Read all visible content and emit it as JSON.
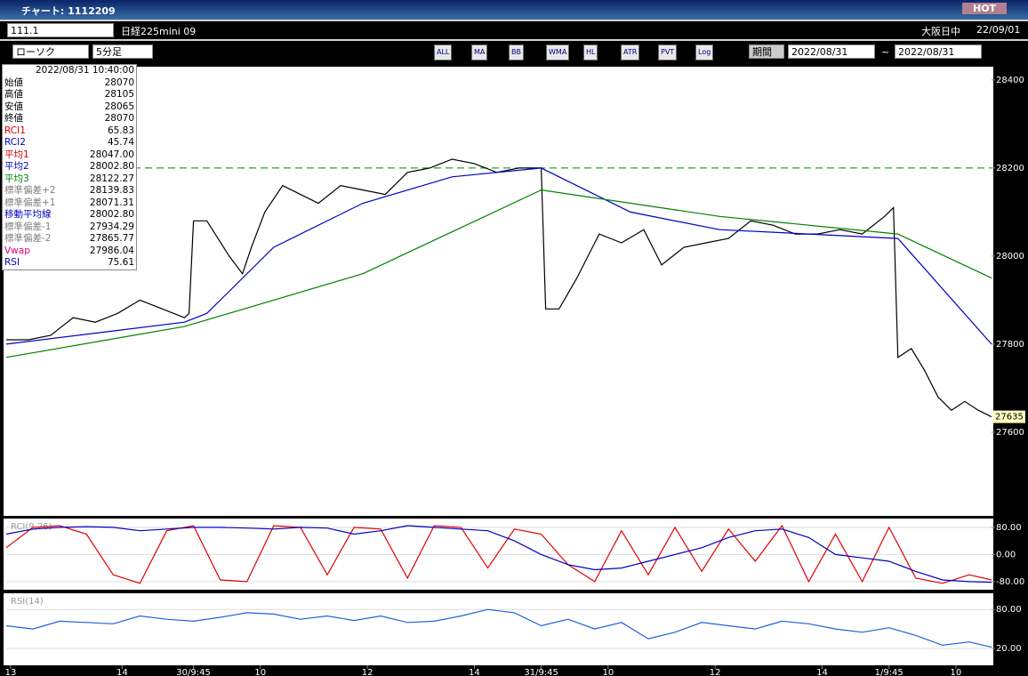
{
  "window": {
    "title": "チャート: 1112209",
    "hot": "HOT"
  },
  "toolbar": {
    "code": "111.1",
    "name": "日経225mini 09",
    "chart_kind": "ローソク",
    "interval": "5分足",
    "buttons": [
      "ALL",
      "MA",
      "BB",
      "WMA",
      "HL",
      "ATR",
      "PVT",
      "Log"
    ],
    "period_button": "期間",
    "from": "2022/08/31",
    "tilde": "~",
    "to": "2022/08/31",
    "market": "大阪日中",
    "date": "22/09/01"
  },
  "info_panel": {
    "datetime": "2022/08/31  10:40:00",
    "rows": [
      {
        "label": "始値",
        "value": "28070",
        "color": "#000000"
      },
      {
        "label": "高値",
        "value": "28105",
        "color": "#000000"
      },
      {
        "label": "安値",
        "value": "28065",
        "color": "#000000"
      },
      {
        "label": "終値",
        "value": "28070",
        "color": "#000000"
      },
      {
        "label": "RCI1",
        "value": "65.83",
        "color": "#d00000"
      },
      {
        "label": "RCI2",
        "value": "45.74",
        "color": "#0000c0"
      },
      {
        "label": "平均1",
        "value": "28047.00",
        "color": "#d00000"
      },
      {
        "label": "平均2",
        "value": "28002.80",
        "color": "#0000c0"
      },
      {
        "label": "平均3",
        "value": "28122.27",
        "color": "#008000"
      },
      {
        "label": "標準偏差+2",
        "value": "28139.83",
        "color": "#808080"
      },
      {
        "label": "標準偏差+1",
        "value": "28071.31",
        "color": "#808080"
      },
      {
        "label": "移動平均線",
        "value": "28002.80",
        "color": "#0000c0"
      },
      {
        "label": "標準偏差-1",
        "value": "27934.29",
        "color": "#808080"
      },
      {
        "label": "標準偏差-2",
        "value": "27865.77",
        "color": "#808080"
      },
      {
        "label": "Vwap",
        "value": "27986.04",
        "color": "#e0007a"
      },
      {
        "label": "RSI",
        "value": "75.61",
        "color": "#0000c0"
      }
    ]
  },
  "chart_data": [
    {
      "type": "line",
      "xlim": [
        0,
        221
      ],
      "ylim": [
        27410,
        28430
      ],
      "yticks": [
        27600,
        27800,
        28000,
        28200,
        28400
      ],
      "xticks": [
        {
          "value": 1,
          "label": "13"
        },
        {
          "value": 26,
          "label": "14"
        },
        {
          "value": 42,
          "label": "30/9:45"
        },
        {
          "value": 57,
          "label": "10"
        },
        {
          "value": 81,
          "label": "12"
        },
        {
          "value": 105,
          "label": "14"
        },
        {
          "value": 120,
          "label": "31/9:45"
        },
        {
          "value": 135,
          "label": "10"
        },
        {
          "value": 159,
          "label": "12"
        },
        {
          "value": 183,
          "label": "14"
        },
        {
          "value": 198,
          "label": "1/9:45"
        },
        {
          "value": 213,
          "label": "10"
        }
      ],
      "reference_line": {
        "value": 28200,
        "color": "#008000"
      },
      "current_price": 27635,
      "series": [
        {
          "name": "終値",
          "color": "#000000",
          "x": [
            0,
            5,
            10,
            15,
            20,
            25,
            30,
            35,
            40,
            41,
            42,
            45,
            50,
            53,
            55,
            58,
            62,
            66,
            70,
            75,
            80,
            85,
            90,
            95,
            100,
            105,
            110,
            115,
            120,
            121,
            124,
            128,
            133,
            138,
            143,
            147,
            152,
            157,
            162,
            167,
            172,
            177,
            182,
            187,
            192,
            197,
            199,
            200,
            203,
            206,
            209,
            212,
            215,
            218,
            221
          ],
          "values": [
            27810,
            27810,
            27820,
            27860,
            27850,
            27870,
            27900,
            27880,
            27860,
            27870,
            28080,
            28080,
            28000,
            27960,
            28020,
            28100,
            28160,
            28140,
            28120,
            28160,
            28150,
            28140,
            28190,
            28200,
            28220,
            28210,
            28190,
            28200,
            28200,
            27880,
            27880,
            27950,
            28050,
            28030,
            28060,
            27980,
            28020,
            28030,
            28040,
            28080,
            28070,
            28050,
            28050,
            28060,
            28050,
            28090,
            28110,
            27770,
            27790,
            27740,
            27680,
            27650,
            27670,
            27650,
            27635
          ]
        },
        {
          "name": "平均2",
          "color": "#0000c0",
          "x": [
            0,
            40,
            45,
            60,
            80,
            100,
            120,
            140,
            160,
            180,
            200,
            221
          ],
          "values": [
            27800,
            27850,
            27870,
            28020,
            28120,
            28180,
            28200,
            28100,
            28060,
            28050,
            28040,
            27800
          ]
        },
        {
          "name": "平均3",
          "color": "#008000",
          "x": [
            0,
            40,
            80,
            120,
            160,
            200,
            221
          ],
          "values": [
            27770,
            27840,
            27960,
            28150,
            28090,
            28050,
            27950
          ]
        }
      ]
    },
    {
      "type": "line",
      "title": "RCI(9,26)",
      "xlim": [
        0,
        221
      ],
      "ylim": [
        -104,
        106
      ],
      "yticks": [
        {
          "value": 80,
          "label": "80.00"
        },
        {
          "value": 0,
          "label": "0.00"
        },
        {
          "value": -80,
          "label": "-80.00"
        }
      ],
      "x": [
        0,
        6,
        12,
        18,
        24,
        30,
        36,
        42,
        48,
        54,
        60,
        66,
        72,
        78,
        84,
        90,
        96,
        102,
        108,
        114,
        120,
        126,
        132,
        138,
        144,
        150,
        156,
        162,
        168,
        174,
        180,
        186,
        192,
        198,
        204,
        210,
        216,
        221
      ],
      "series": [
        {
          "name": "RCI1",
          "color": "#e00000",
          "values": [
            20,
            80,
            85,
            60,
            -60,
            -85,
            70,
            85,
            -75,
            -80,
            85,
            80,
            -60,
            80,
            75,
            -70,
            85,
            80,
            -40,
            75,
            60,
            -30,
            -80,
            70,
            -60,
            80,
            -50,
            75,
            -20,
            85,
            -80,
            60,
            -80,
            80,
            -70,
            -85,
            -60,
            -75
          ]
        },
        {
          "name": "RCI2",
          "color": "#0000c0",
          "values": [
            60,
            75,
            80,
            82,
            80,
            70,
            75,
            80,
            80,
            78,
            75,
            80,
            78,
            60,
            70,
            85,
            80,
            75,
            70,
            40,
            0,
            -30,
            -45,
            -40,
            -20,
            0,
            20,
            50,
            70,
            75,
            50,
            0,
            -10,
            -20,
            -50,
            -75,
            -80,
            -82
          ]
        }
      ]
    },
    {
      "type": "line",
      "title": "RSI(14)",
      "xlim": [
        0,
        221
      ],
      "ylim": [
        -6,
        105
      ],
      "yticks": [
        {
          "value": 80,
          "label": "80.00"
        },
        {
          "value": 20,
          "label": "20.00"
        }
      ],
      "x": [
        0,
        6,
        12,
        18,
        24,
        30,
        36,
        42,
        48,
        54,
        60,
        66,
        72,
        78,
        84,
        90,
        96,
        102,
        108,
        114,
        120,
        126,
        132,
        138,
        144,
        150,
        156,
        162,
        168,
        174,
        180,
        186,
        192,
        198,
        204,
        210,
        216,
        221
      ],
      "series": [
        {
          "name": "RSI",
          "color": "#2060e0",
          "values": [
            55,
            50,
            62,
            60,
            58,
            70,
            65,
            62,
            68,
            75,
            73,
            65,
            70,
            63,
            70,
            60,
            62,
            70,
            80,
            75,
            55,
            65,
            50,
            60,
            35,
            45,
            60,
            55,
            50,
            62,
            58,
            50,
            45,
            52,
            40,
            25,
            30,
            22
          ]
        }
      ]
    }
  ]
}
